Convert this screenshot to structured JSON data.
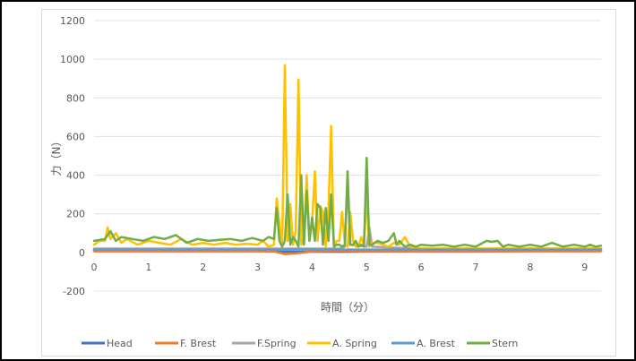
{
  "chart_data": {
    "type": "line",
    "title": "",
    "xlabel": "時間（分）",
    "ylabel": "力（N）",
    "xlim": [
      0,
      9.3
    ],
    "ylim": [
      -200,
      1200
    ],
    "x_ticks": [
      0,
      1,
      2,
      3,
      4,
      5,
      6,
      7,
      8,
      9
    ],
    "y_ticks": [
      -200,
      0,
      200,
      400,
      600,
      800,
      1000,
      1200
    ],
    "grid": true,
    "legend_position": "bottom",
    "series": [
      {
        "name": "Head",
        "color": "#4472C4",
        "x": [
          0,
          3.0,
          3.3,
          3.5,
          3.8,
          4.0,
          4.5,
          5.0,
          6.0,
          7.0,
          8.0,
          9.3
        ],
        "values": [
          8,
          8,
          5,
          4,
          3,
          4,
          4,
          5,
          6,
          6,
          7,
          7
        ]
      },
      {
        "name": "F. Brest",
        "color": "#ED7D31",
        "x": [
          0,
          3.0,
          3.3,
          3.5,
          3.7,
          4.0,
          4.5,
          5.0,
          6.0,
          7.0,
          8.0,
          9.3
        ],
        "values": [
          10,
          10,
          5,
          -8,
          -5,
          5,
          8,
          6,
          6,
          6,
          7,
          7
        ]
      },
      {
        "name": "F.Spring",
        "color": "#A5A5A5",
        "x": [
          0,
          1.0,
          2.0,
          3.0,
          3.3,
          3.5,
          3.9,
          4.2,
          4.5,
          4.6,
          4.65,
          4.7,
          5.0,
          5.05,
          5.1,
          5.5,
          6.0,
          7.0,
          8.0,
          9.3
        ],
        "values": [
          20,
          20,
          20,
          20,
          20,
          20,
          20,
          20,
          20,
          30,
          385,
          40,
          30,
          130,
          30,
          25,
          20,
          20,
          20,
          20
        ]
      },
      {
        "name": "A. Spring",
        "color": "#FFC000",
        "x": [
          0,
          0.1,
          0.2,
          0.25,
          0.3,
          0.4,
          0.5,
          0.6,
          0.8,
          1.0,
          1.2,
          1.4,
          1.6,
          1.8,
          2.0,
          2.2,
          2.4,
          2.6,
          2.8,
          3.0,
          3.1,
          3.2,
          3.3,
          3.35,
          3.4,
          3.45,
          3.5,
          3.55,
          3.6,
          3.65,
          3.7,
          3.75,
          3.8,
          3.85,
          3.9,
          3.95,
          4.0,
          4.05,
          4.1,
          4.15,
          4.2,
          4.25,
          4.3,
          4.35,
          4.4,
          4.45,
          4.5,
          4.55,
          4.6,
          4.65,
          4.7,
          4.75,
          4.8,
          4.85,
          4.9,
          4.95,
          5.0,
          5.05,
          5.1,
          5.2,
          5.3,
          5.4,
          5.5,
          5.6,
          5.7,
          5.8,
          6.0,
          6.5,
          7.0,
          7.5,
          8.0,
          8.5,
          9.0,
          9.3
        ],
        "values": [
          40,
          60,
          60,
          130,
          70,
          100,
          50,
          70,
          40,
          60,
          50,
          40,
          70,
          40,
          50,
          40,
          50,
          40,
          45,
          40,
          60,
          30,
          40,
          280,
          150,
          30,
          970,
          60,
          250,
          40,
          110,
          895,
          40,
          80,
          400,
          60,
          150,
          420,
          60,
          240,
          210,
          30,
          230,
          655,
          30,
          60,
          60,
          210,
          40,
          30,
          210,
          60,
          30,
          30,
          80,
          40,
          290,
          30,
          50,
          50,
          40,
          30,
          50,
          40,
          80,
          30,
          20,
          20,
          20,
          20,
          20,
          20,
          20,
          20
        ]
      },
      {
        "name": "A. Brest",
        "color": "#5B9BD5",
        "x": [
          0,
          1.0,
          2.0,
          3.0,
          4.0,
          5.0,
          6.0,
          7.0,
          8.0,
          9.3
        ],
        "values": [
          15,
          15,
          15,
          15,
          15,
          15,
          15,
          15,
          15,
          15
        ]
      },
      {
        "name": "Stern",
        "color": "#70AD47",
        "x": [
          0,
          0.2,
          0.3,
          0.4,
          0.5,
          0.7,
          0.9,
          1.1,
          1.3,
          1.5,
          1.7,
          1.9,
          2.1,
          2.3,
          2.5,
          2.7,
          2.9,
          3.1,
          3.2,
          3.3,
          3.35,
          3.4,
          3.45,
          3.5,
          3.55,
          3.6,
          3.65,
          3.7,
          3.75,
          3.8,
          3.85,
          3.9,
          3.95,
          4.0,
          4.05,
          4.1,
          4.15,
          4.2,
          4.25,
          4.3,
          4.35,
          4.4,
          4.45,
          4.5,
          4.55,
          4.6,
          4.65,
          4.7,
          4.75,
          4.8,
          4.85,
          4.9,
          4.95,
          5.0,
          5.05,
          5.1,
          5.15,
          5.2,
          5.3,
          5.4,
          5.5,
          5.55,
          5.6,
          5.7,
          5.8,
          5.9,
          6.0,
          6.2,
          6.4,
          6.6,
          6.8,
          7.0,
          7.2,
          7.3,
          7.4,
          7.5,
          7.6,
          7.8,
          8.0,
          8.2,
          8.4,
          8.6,
          8.8,
          9.0,
          9.1,
          9.2,
          9.3
        ],
        "values": [
          60,
          70,
          110,
          60,
          80,
          70,
          60,
          80,
          70,
          90,
          50,
          70,
          60,
          65,
          70,
          60,
          75,
          60,
          80,
          70,
          230,
          60,
          30,
          60,
          300,
          40,
          80,
          60,
          30,
          400,
          40,
          320,
          60,
          180,
          60,
          250,
          230,
          40,
          230,
          60,
          300,
          30,
          40,
          40,
          30,
          40,
          420,
          40,
          40,
          60,
          30,
          40,
          30,
          490,
          40,
          40,
          50,
          60,
          50,
          60,
          100,
          40,
          60,
          30,
          40,
          30,
          40,
          35,
          40,
          30,
          40,
          30,
          60,
          55,
          60,
          30,
          40,
          30,
          40,
          30,
          50,
          30,
          40,
          30,
          40,
          30,
          35
        ]
      }
    ]
  }
}
